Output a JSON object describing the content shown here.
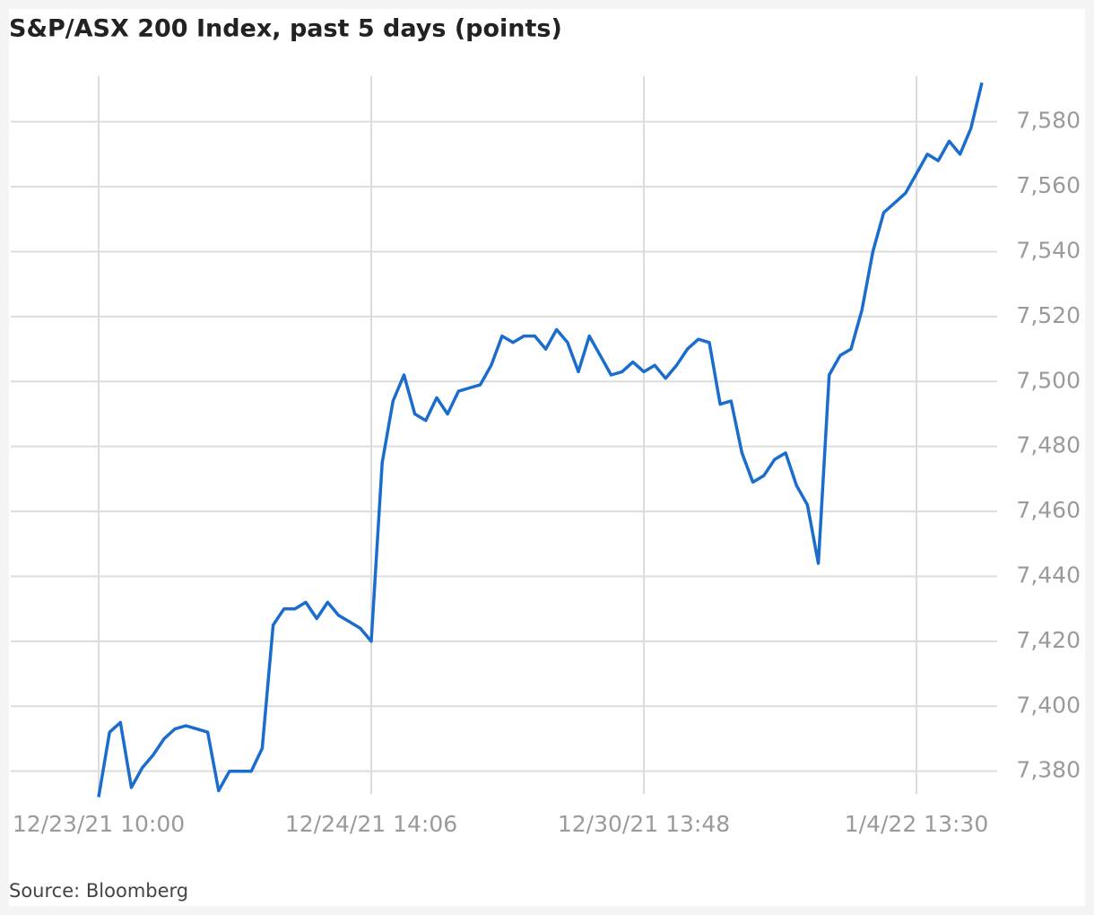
{
  "chart_data": {
    "type": "line",
    "title": "S&P/ASX 200 Index, past 5 days (points)",
    "source": "Source: Bloomberg",
    "categories": [
      "12/23/21 10:00",
      null,
      null,
      null,
      null,
      null,
      null,
      null,
      null,
      null,
      null,
      null,
      null,
      null,
      null,
      null,
      null,
      null,
      null,
      null,
      null,
      null,
      null,
      null,
      null,
      "12/24/21 14:06",
      null,
      null,
      null,
      null,
      null,
      null,
      null,
      null,
      null,
      null,
      null,
      null,
      null,
      null,
      null,
      null,
      null,
      null,
      null,
      null,
      null,
      null,
      null,
      null,
      "12/30/21 13:48",
      null,
      null,
      null,
      null,
      null,
      null,
      null,
      null,
      null,
      null,
      null,
      null,
      null,
      null,
      null,
      null,
      null,
      null,
      null,
      null,
      null,
      null,
      null,
      null,
      "1/4/22 13:30",
      null,
      null,
      null,
      null,
      null,
      null
    ],
    "series": [
      {
        "name": "S&P/ASX 200",
        "color": "#1a6dcc",
        "values": [
          7372,
          7392,
          7395,
          7375,
          7381,
          7385,
          7390,
          7393,
          7394,
          7393,
          7392,
          7374,
          7380,
          7380,
          7380,
          7387,
          7425,
          7430,
          7430,
          7432,
          7427,
          7432,
          7428,
          7426,
          7424,
          7420,
          7475,
          7494,
          7502,
          7490,
          7488,
          7495,
          7490,
          7497,
          7498,
          7499,
          7505,
          7514,
          7512,
          7514,
          7514,
          7510,
          7516,
          7512,
          7503,
          7514,
          7508,
          7502,
          7503,
          7506,
          7503,
          7505,
          7501,
          7505,
          7510,
          7513,
          7512,
          7493,
          7494,
          7478,
          7469,
          7471,
          7476,
          7478,
          7468,
          7462,
          7444,
          7502,
          7508,
          7510,
          7522,
          7540,
          7552,
          7555,
          7558,
          7564,
          7570,
          7568,
          7574,
          7570,
          7578,
          7592
        ]
      }
    ],
    "ylim": [
      7373,
      7594
    ],
    "yticks": [
      {
        "value": 7380,
        "label": "7,380"
      },
      {
        "value": 7400,
        "label": "7,400"
      },
      {
        "value": 7420,
        "label": "7,420"
      },
      {
        "value": 7440,
        "label": "7,440"
      },
      {
        "value": 7460,
        "label": "7,460"
      },
      {
        "value": 7480,
        "label": "7,480"
      },
      {
        "value": 7500,
        "label": "7,500"
      },
      {
        "value": 7520,
        "label": "7,520"
      },
      {
        "value": 7540,
        "label": "7,540"
      },
      {
        "value": 7560,
        "label": "7,560"
      },
      {
        "value": 7580,
        "label": "7,580"
      }
    ],
    "grid": true
  }
}
